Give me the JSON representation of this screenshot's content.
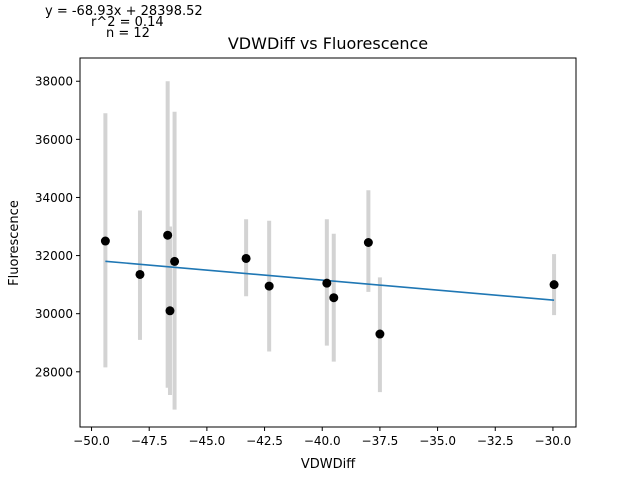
{
  "stats": {
    "equation": "y = -68.93x + 28398.52",
    "r_squared": "r^2 = 0.14",
    "n": "n = 12"
  },
  "chart_data": {
    "type": "scatter",
    "title": "VDWDiff vs Fluorescence",
    "xlabel": "VDWDiff",
    "ylabel": "Fluorescence",
    "xlim": [
      -50.5,
      -29.0
    ],
    "ylim": [
      26100,
      38800
    ],
    "x_ticks": [
      -50.0,
      -47.5,
      -45.0,
      -42.5,
      -40.0,
      -37.5,
      -35.0,
      -32.5,
      -30.0
    ],
    "x_tick_labels": [
      "−50.0",
      "−47.5",
      "−45.0",
      "−42.5",
      "−40.0",
      "−37.5",
      "−35.0",
      "−32.5",
      "−30.0"
    ],
    "y_ticks": [
      28000,
      30000,
      32000,
      34000,
      36000,
      38000
    ],
    "y_tick_labels": [
      "28000",
      "30000",
      "32000",
      "34000",
      "36000",
      "38000"
    ],
    "points": [
      {
        "x": -49.4,
        "y": 32500,
        "err_low": 28150,
        "err_high": 36900
      },
      {
        "x": -47.9,
        "y": 31350,
        "err_low": 29100,
        "err_high": 33550
      },
      {
        "x": -46.7,
        "y": 32700,
        "err_low": 27450,
        "err_high": 38000
      },
      {
        "x": -46.6,
        "y": 30100,
        "err_low": 27200,
        "err_high": 33000
      },
      {
        "x": -46.4,
        "y": 31800,
        "err_low": 26700,
        "err_high": 36950
      },
      {
        "x": -43.3,
        "y": 31900,
        "err_low": 30600,
        "err_high": 33250
      },
      {
        "x": -42.3,
        "y": 30950,
        "err_low": 28700,
        "err_high": 33200
      },
      {
        "x": -39.8,
        "y": 31050,
        "err_low": 28900,
        "err_high": 33250
      },
      {
        "x": -39.5,
        "y": 30550,
        "err_low": 28350,
        "err_high": 32750
      },
      {
        "x": -38.0,
        "y": 32450,
        "err_low": 30750,
        "err_high": 34250
      },
      {
        "x": -37.5,
        "y": 29300,
        "err_low": 27300,
        "err_high": 31250
      },
      {
        "x": -29.95,
        "y": 31000,
        "err_low": 29950,
        "err_high": 32050
      }
    ],
    "fit_line": {
      "slope": -68.93,
      "intercept": 28398.52,
      "x_range": [
        -49.4,
        -29.95
      ]
    },
    "colors": {
      "points": "#000000",
      "error_bars": "#d3d3d3",
      "fit_line": "#1f77b4"
    },
    "grid": false,
    "legend": "none"
  }
}
